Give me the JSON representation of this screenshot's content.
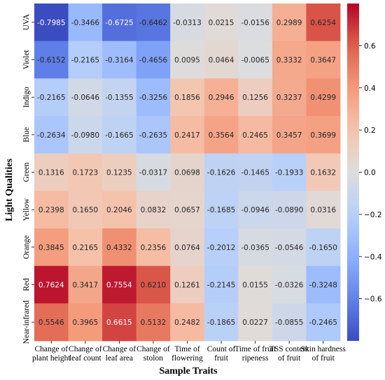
{
  "chart_data": {
    "type": "heatmap",
    "title": "",
    "xlabel": "Sample Traits",
    "ylabel": "Light Qualities",
    "columns": [
      [
        "Change of",
        "plant height"
      ],
      [
        "Change of",
        "leaf count"
      ],
      [
        "Change of",
        "leaf area"
      ],
      [
        "Change of",
        "stolon"
      ],
      [
        "Time of",
        "flowering"
      ],
      [
        "Count of",
        "fruit"
      ],
      [
        "Time of fruit",
        "ripeness"
      ],
      [
        "TSS content",
        "of fruit"
      ],
      [
        "Skin hardness",
        "of fruit"
      ]
    ],
    "rows": [
      "UVA",
      "Violet",
      "Indigo",
      "Blue",
      "Green",
      "Yellow",
      "Orange",
      "Red",
      "Near-infrared"
    ],
    "values": [
      [
        -0.7985,
        -0.3466,
        -0.6725,
        -0.6462,
        -0.0313,
        0.0215,
        -0.0156,
        0.2989,
        0.6254
      ],
      [
        -0.6152,
        -0.2165,
        -0.3164,
        -0.4656,
        0.0095,
        0.0464,
        -0.0065,
        0.3332,
        0.3647
      ],
      [
        -0.2165,
        -0.0646,
        -0.1355,
        -0.3256,
        0.1856,
        0.2946,
        0.1256,
        0.3237,
        0.4299
      ],
      [
        -0.2634,
        -0.098,
        -0.1665,
        -0.2635,
        0.2417,
        0.3564,
        0.2465,
        0.3457,
        0.3699
      ],
      [
        0.1316,
        0.1723,
        0.1235,
        -0.0317,
        0.0698,
        -0.1626,
        -0.1465,
        -0.1933,
        0.1632
      ],
      [
        0.2398,
        0.165,
        0.2046,
        0.0832,
        0.0657,
        -0.1685,
        -0.0946,
        -0.089,
        0.0316
      ],
      [
        0.3845,
        0.2165,
        0.4332,
        0.2356,
        0.0764,
        -0.2012,
        -0.0365,
        -0.0546,
        -0.165
      ],
      [
        0.7624,
        0.3417,
        0.7554,
        0.621,
        0.1261,
        -0.2145,
        0.0155,
        -0.0326,
        -0.3248
      ],
      [
        0.5546,
        0.3965,
        0.6615,
        0.5132,
        0.2482,
        -0.1865,
        0.0227,
        -0.0855,
        -0.2465
      ]
    ],
    "colorscale": "coolwarm",
    "vmin": -0.8,
    "vmax": 0.8,
    "colorbar_ticks": [
      0.6,
      0.4,
      0.2,
      0.0,
      -0.2,
      -0.4,
      -0.6
    ],
    "colorbar_tick_labels": [
      "0.6",
      "0.4",
      "0.2",
      "0.0",
      "−0.2",
      "−0.4",
      "−0.6"
    ]
  }
}
